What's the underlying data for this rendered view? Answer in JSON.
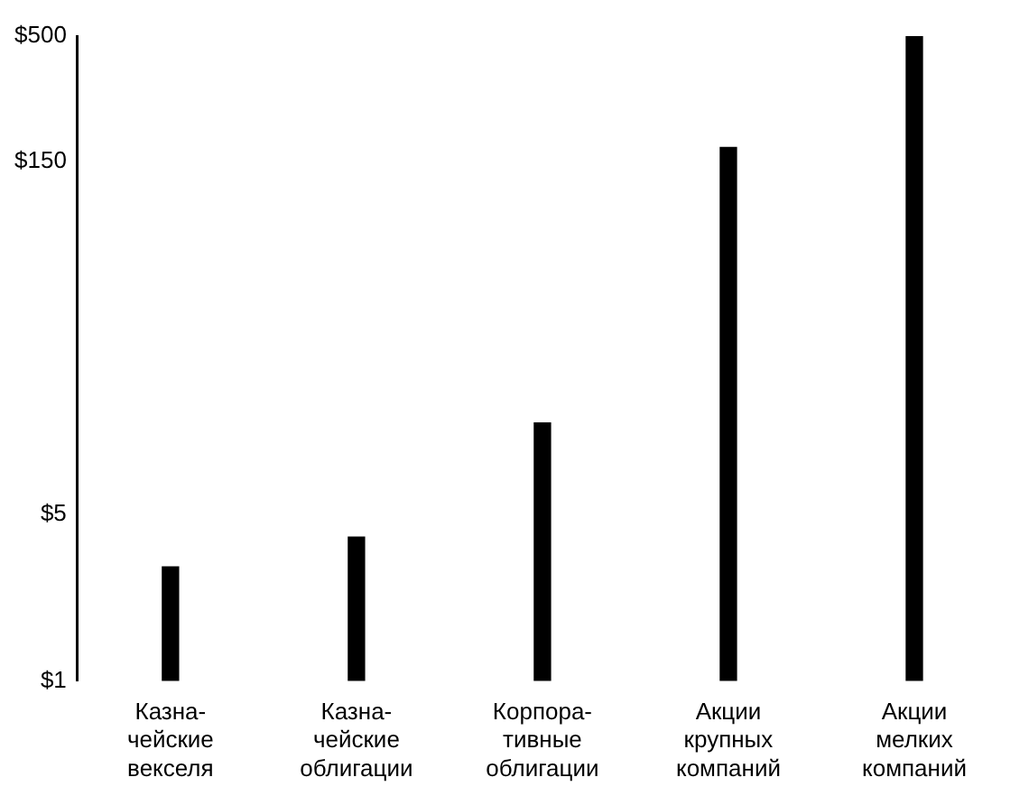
{
  "chart_data": {
    "type": "bar",
    "categories": [
      "Казна-\nчейские\nвекселя",
      "Казна-\nчейские\nоблигации",
      "Корпора-\nтивные\nоблигации",
      "Акции\nкрупных\nкомпаний",
      "Акции\nмелких\nкомпаний"
    ],
    "values": [
      3,
      4,
      12,
      171,
      500
    ],
    "color": "#000000",
    "ylim": [
      1,
      500
    ],
    "yticks": [
      {
        "value": 1,
        "label": "$1"
      },
      {
        "value": 5,
        "label": "$5"
      },
      {
        "value": 150,
        "label": "$150"
      },
      {
        "value": 500,
        "label": "$500"
      }
    ],
    "log": true,
    "grid": false,
    "legend": false
  }
}
